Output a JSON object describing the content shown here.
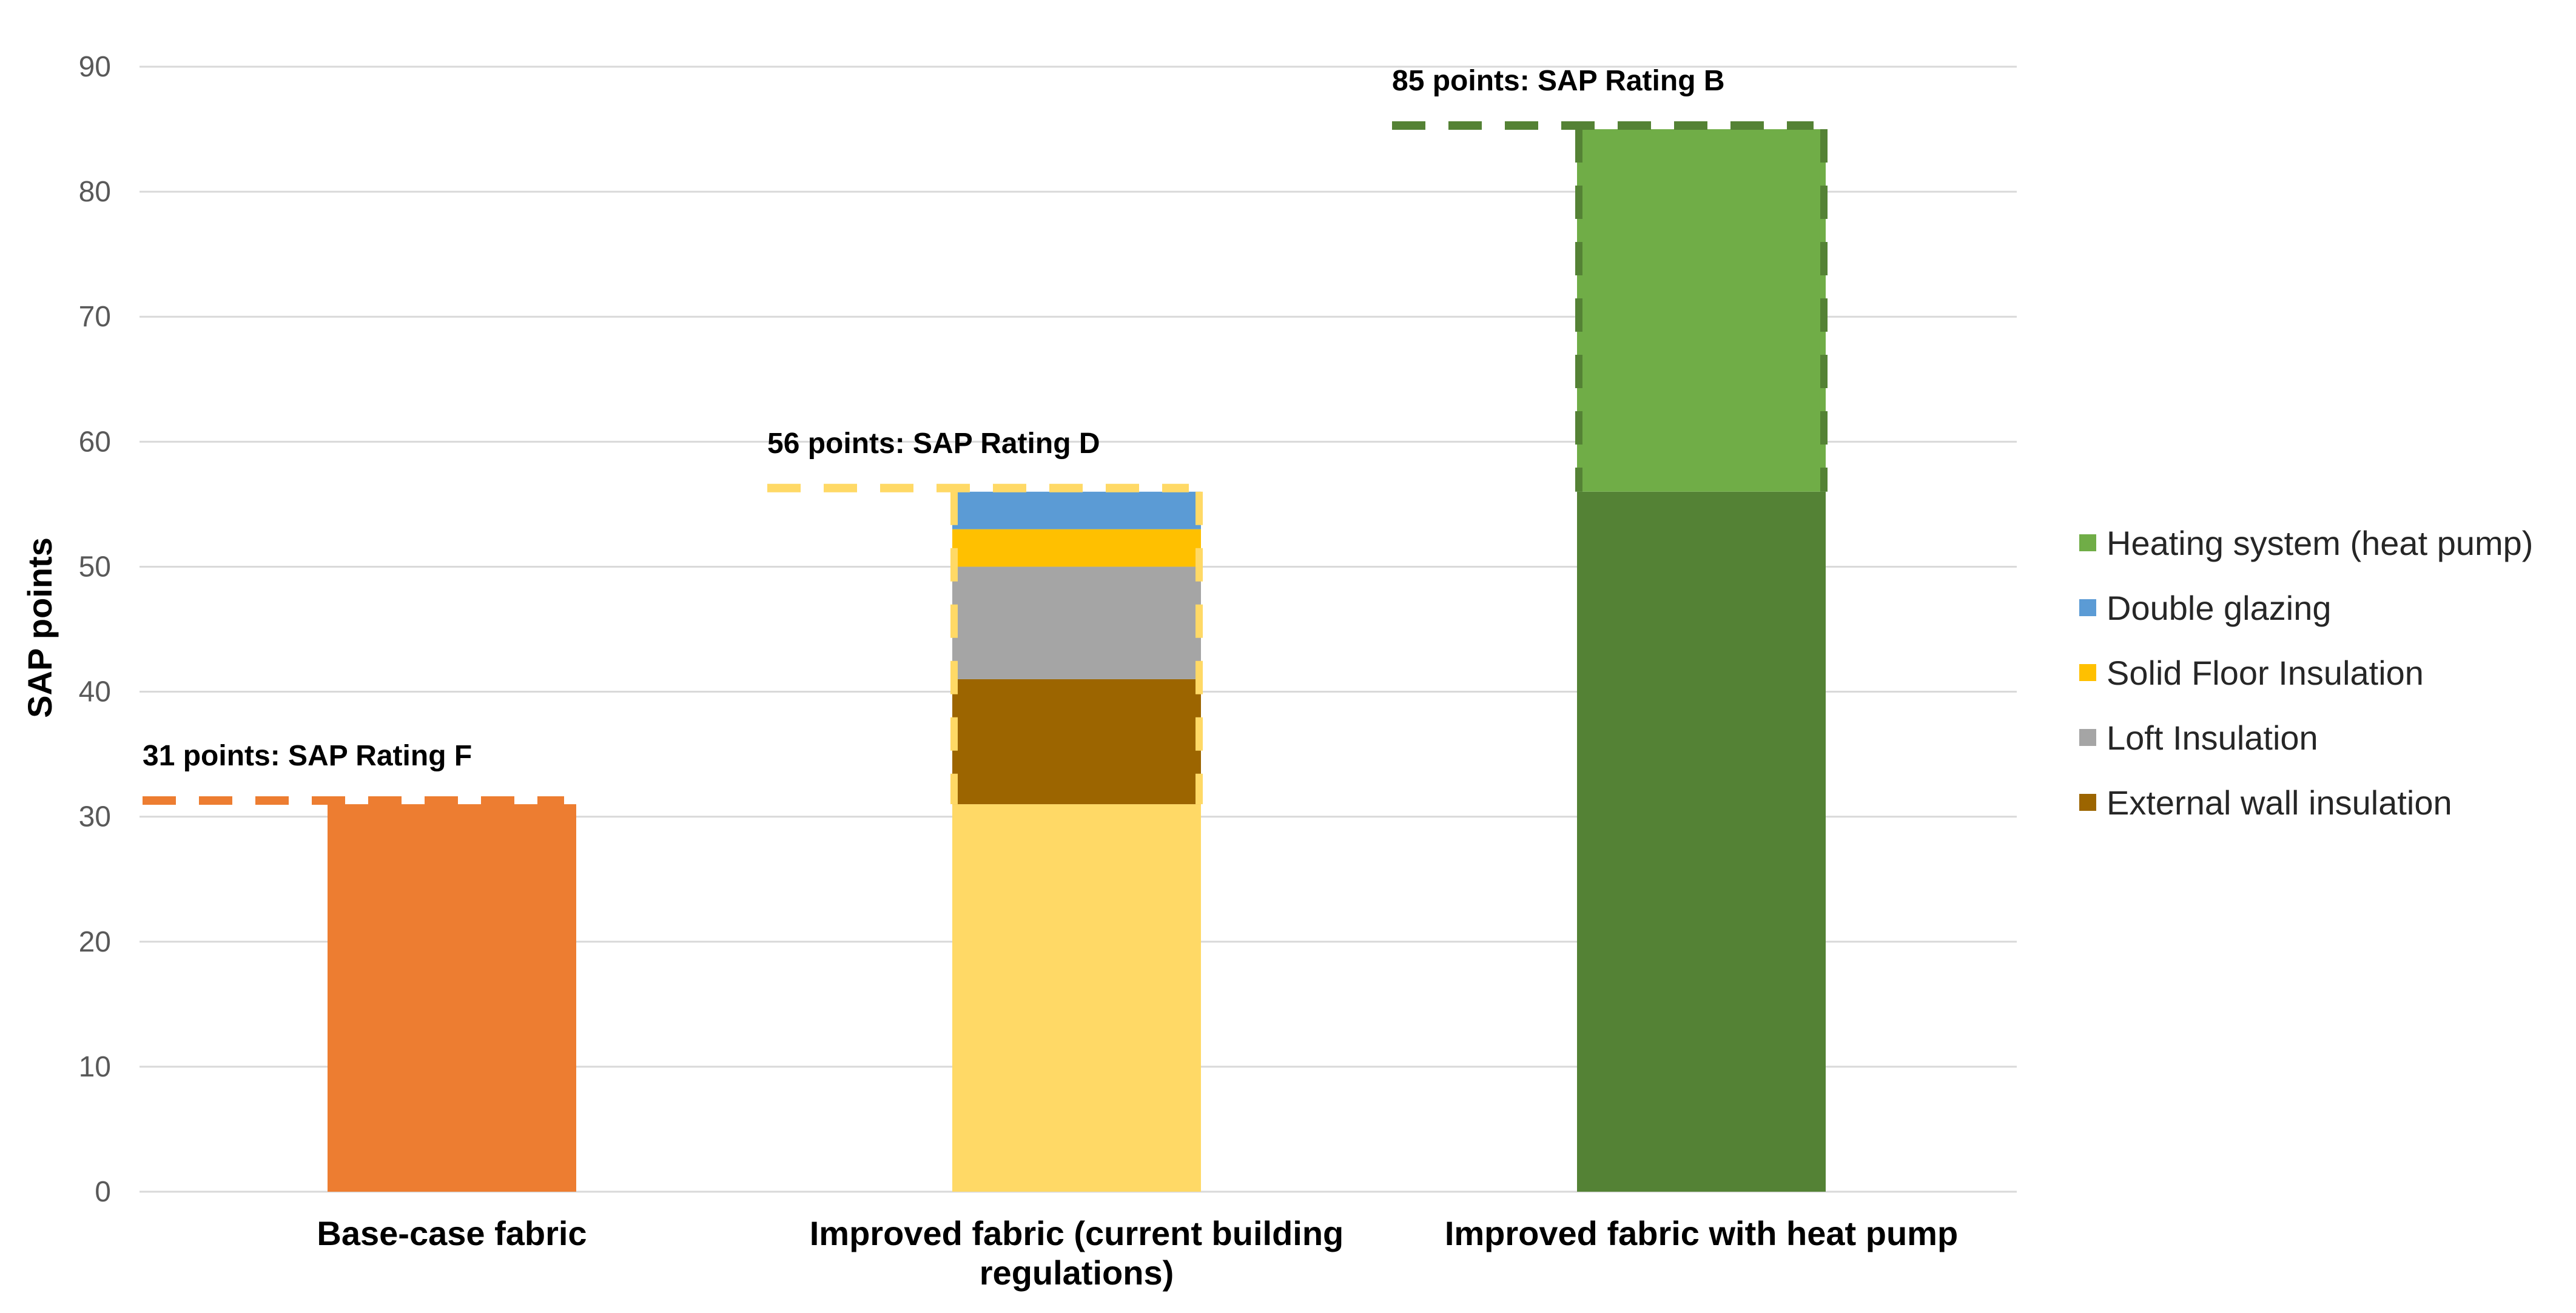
{
  "chart_data": {
    "type": "bar",
    "stacked": true,
    "title": "",
    "xlabel": "",
    "ylabel": "SAP points",
    "ylim": [
      0,
      90
    ],
    "yticks": [
      0,
      10,
      20,
      30,
      40,
      50,
      60,
      70,
      80,
      90
    ],
    "grid": true,
    "legend_position": "right",
    "categories": [
      [
        "Base-case fabric"
      ],
      [
        "Improved fabric (current building",
        "regulations)"
      ],
      [
        "Improved fabric with heat pump"
      ]
    ],
    "stacks": [
      {
        "segments": [
          {
            "series": "Base",
            "start": 0,
            "end": 31,
            "color": "#ED7D31"
          }
        ],
        "annotation": "31 points: SAP Rating F",
        "annotation_value": 31,
        "outline_color": "#ED7D31"
      },
      {
        "segments": [
          {
            "series": "Base",
            "start": 0,
            "end": 31,
            "color": "#FFD966"
          },
          {
            "series": "External wall insulation",
            "start": 31,
            "end": 41,
            "color": "#9C6500"
          },
          {
            "series": "Loft Insulation",
            "start": 41,
            "end": 50,
            "color": "#A5A5A5"
          },
          {
            "series": "Solid Floor Insulation",
            "start": 50,
            "end": 53,
            "color": "#FFC000"
          },
          {
            "series": "Double glazing",
            "start": 53,
            "end": 56,
            "color": "#5B9BD5"
          }
        ],
        "annotation": "56 points: SAP Rating D",
        "annotation_value": 56,
        "outline_color": "#FFD966"
      },
      {
        "segments": [
          {
            "series": "Base",
            "start": 0,
            "end": 56,
            "color": "#548235"
          },
          {
            "series": "Heating system (heat pump)",
            "start": 56,
            "end": 85,
            "color": "#70AD47"
          }
        ],
        "annotation": "85 points: SAP Rating B",
        "annotation_value": 85,
        "outline_color": "#548235"
      }
    ],
    "legend": [
      {
        "label": "Heating system (heat pump)",
        "color": "#70AD47"
      },
      {
        "label": "Double glazing",
        "color": "#5B9BD5"
      },
      {
        "label": "Solid Floor Insulation",
        "color": "#FFC000"
      },
      {
        "label": "Loft Insulation",
        "color": "#A5A5A5"
      },
      {
        "label": "External wall insulation",
        "color": "#9C6500"
      }
    ]
  }
}
